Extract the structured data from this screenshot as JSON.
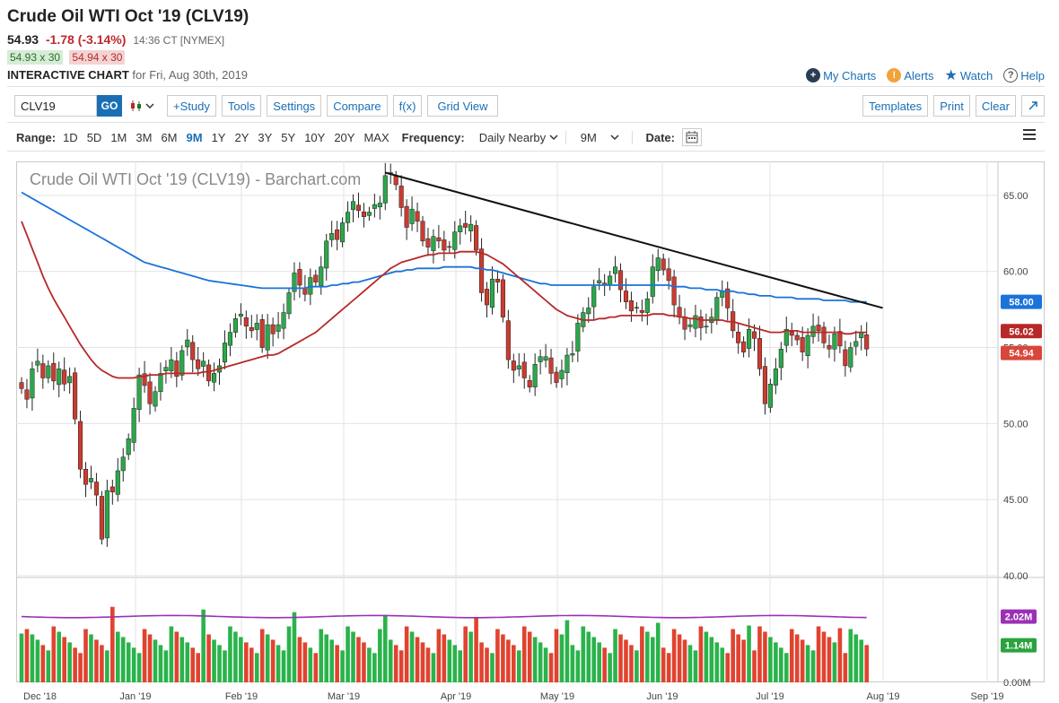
{
  "header": {
    "title": "Crude Oil WTI Oct '19 (CLV19)",
    "last": "54.93",
    "change": "-1.78 (-3.14%)",
    "time": "14:36 CT [NYMEX]",
    "bid": "54.93 x 30",
    "ask": "54.94 x 30",
    "interactive_label": "INTERACTIVE CHART",
    "interactive_date": "for Fri, Aug 30th, 2019"
  },
  "links": {
    "my_charts": "My Charts",
    "alerts": "Alerts",
    "watch": "Watch",
    "help": "Help"
  },
  "toolbar": {
    "symbol_value": "CLV19",
    "go": "GO",
    "study": "+Study",
    "tools": "Tools",
    "settings": "Settings",
    "compare": "Compare",
    "fx": "f(x)",
    "grid_view": "Grid View",
    "templates": "Templates",
    "print": "Print",
    "clear": "Clear"
  },
  "rangebar": {
    "range_label": "Range:",
    "ranges": [
      "1D",
      "5D",
      "1M",
      "3M",
      "6M",
      "9M",
      "1Y",
      "2Y",
      "3Y",
      "5Y",
      "10Y",
      "20Y",
      "MAX"
    ],
    "active_range": "9M",
    "frequency_label": "Frequency:",
    "frequency_value": "Daily Nearby",
    "period_value": "9M",
    "date_label": "Date:"
  },
  "chart_data": {
    "type": "candlestick",
    "watermark": "Crude Oil WTI Oct '19 (CLV19) - Barchart.com",
    "price_axis": {
      "ylim": [
        40,
        67
      ],
      "ticks": [
        "65.00",
        "60.00",
        "55.00",
        "50.00",
        "45.00",
        "40.00"
      ]
    },
    "volume_axis": {
      "ticks": [
        "0.00M"
      ]
    },
    "x_tick_labels": [
      "Dec '18",
      "Jan '19",
      "Feb '19",
      "Mar '19",
      "Apr '19",
      "May '19",
      "Jun '19",
      "Jul '19",
      "Aug '19",
      "Sep '19"
    ],
    "price_badges": [
      {
        "label": "58.00",
        "color": "#1a73d9"
      },
      {
        "label": "56.02",
        "color": "#b82828"
      },
      {
        "label": "54.94",
        "color": "#d9463a"
      }
    ],
    "volume_badges": [
      {
        "label": "2.02M",
        "color": "#9b30b5"
      },
      {
        "label": "1.14M",
        "color": "#2aa33f"
      }
    ],
    "closes": [
      52.3,
      51.6,
      53.6,
      54.1,
      53.0,
      53.8,
      52.8,
      53.6,
      52.6,
      53.1,
      50.3,
      47.0,
      46.0,
      46.4,
      45.3,
      42.4,
      45.6,
      45.5,
      46.9,
      47.8,
      49.0,
      51.0,
      53.2,
      52.5,
      51.3,
      52.1,
      53.3,
      53.7,
      54.2,
      53.1,
      54.8,
      55.5,
      54.2,
      53.6,
      54.1,
      52.8,
      53.3,
      53.8,
      55.3,
      56.0,
      56.9,
      57.2,
      56.4,
      56.1,
      56.6,
      55.0,
      56.5,
      55.9,
      56.5,
      57.3,
      58.6,
      59.9,
      59.1,
      58.5,
      59.6,
      59.3,
      60.3,
      62.0,
      62.5,
      62.1,
      63.2,
      63.9,
      64.6,
      64.0,
      63.6,
      63.9,
      64.4,
      64.5,
      66.3,
      66.5,
      65.7,
      64.2,
      62.9,
      64.1,
      63.3,
      62.0,
      61.6,
      62.3,
      62.0,
      61.4,
      61.6,
      62.6,
      63.0,
      62.9,
      63.1,
      61.4,
      58.6,
      57.8,
      59.5,
      59.3,
      57.0,
      54.2,
      53.5,
      53.8,
      53.0,
      52.4,
      53.9,
      54.4,
      54.4,
      53.3,
      52.7,
      53.5,
      54.5,
      54.6,
      56.6,
      57.3,
      57.6,
      59.0,
      59.4,
      59.1,
      59.7,
      60.3,
      58.8,
      58.0,
      57.4,
      57.6,
      57.3,
      58.2,
      60.3,
      60.9,
      60.1,
      59.4,
      57.8,
      57.0,
      56.2,
      56.5,
      57.1,
      56.3,
      56.4,
      57.0,
      58.3,
      58.7,
      57.6,
      56.1,
      55.3,
      54.7,
      56.2,
      55.6,
      53.6,
      51.3,
      52.6,
      53.6,
      54.9,
      56.2,
      55.8,
      55.5,
      54.7,
      55.8,
      56.4,
      56.1,
      55.3,
      54.9,
      55.9,
      55.1,
      53.8,
      55.0,
      55.4,
      56.0,
      54.9
    ],
    "sma_red": {
      "name": "Moving average 1",
      "color": "#b82828",
      "values": [
        63.3,
        62.4,
        61.5,
        60.6,
        59.7,
        58.9,
        58.2,
        57.6,
        57.0,
        56.4,
        55.8,
        55.2,
        54.7,
        54.2,
        53.8,
        53.5,
        53.3,
        53.1,
        53.0,
        53.0,
        53.0,
        53.0,
        53.1,
        53.1,
        53.2,
        53.2,
        53.2,
        53.3,
        53.3,
        53.3,
        53.3,
        53.3,
        53.3,
        53.3,
        53.4,
        53.4,
        53.5,
        53.6,
        53.7,
        53.8,
        53.9,
        54.0,
        54.1,
        54.2,
        54.3,
        54.4,
        54.5,
        54.5,
        54.6,
        54.8,
        55.0,
        55.2,
        55.4,
        55.6,
        55.8,
        56.0,
        56.3,
        56.6,
        56.9,
        57.2,
        57.5,
        57.8,
        58.1,
        58.4,
        58.7,
        59.0,
        59.3,
        59.6,
        59.9,
        60.2,
        60.4,
        60.6,
        60.7,
        60.8,
        60.9,
        61.0,
        61.1,
        61.1,
        61.2,
        61.2,
        61.2,
        61.2,
        61.3,
        61.3,
        61.3,
        61.3,
        61.2,
        61.1,
        60.9,
        60.7,
        60.5,
        60.2,
        59.9,
        59.6,
        59.3,
        59.0,
        58.7,
        58.4,
        58.1,
        57.8,
        57.5,
        57.3,
        57.1,
        57.0,
        56.9,
        56.8,
        56.8,
        56.8,
        56.9,
        56.9,
        57.0,
        57.0,
        57.1,
        57.1,
        57.1,
        57.1,
        57.1,
        57.1,
        57.2,
        57.2,
        57.2,
        57.1,
        57.1,
        57.0,
        57.0,
        56.9,
        56.9,
        56.8,
        56.8,
        56.8,
        56.8,
        56.8,
        56.7,
        56.7,
        56.6,
        56.5,
        56.4,
        56.3,
        56.2,
        56.1,
        56.0,
        56.0,
        56.0,
        56.1,
        56.1,
        56.1,
        56.0,
        56.0,
        56.0,
        56.0,
        56.0,
        56.0,
        56.0,
        56.0,
        55.9,
        55.9,
        56.0,
        56.0,
        56.0
      ]
    },
    "sma_blue": {
      "name": "Moving average 2",
      "color": "#1a73d9",
      "values": [
        65.2,
        65.0,
        64.8,
        64.6,
        64.4,
        64.2,
        64.0,
        63.8,
        63.6,
        63.4,
        63.2,
        63.0,
        62.8,
        62.6,
        62.4,
        62.2,
        62.0,
        61.8,
        61.6,
        61.4,
        61.2,
        61.0,
        60.8,
        60.6,
        60.5,
        60.4,
        60.3,
        60.2,
        60.1,
        60.0,
        59.9,
        59.8,
        59.7,
        59.6,
        59.5,
        59.4,
        59.35,
        59.3,
        59.25,
        59.2,
        59.15,
        59.1,
        59.05,
        59.0,
        58.95,
        58.9,
        58.9,
        58.9,
        58.9,
        58.9,
        58.9,
        58.9,
        58.9,
        58.9,
        59.0,
        59.0,
        59.0,
        59.0,
        59.1,
        59.1,
        59.2,
        59.2,
        59.3,
        59.3,
        59.4,
        59.5,
        59.6,
        59.7,
        59.8,
        59.9,
        60.0,
        60.0,
        60.1,
        60.1,
        60.2,
        60.2,
        60.2,
        60.2,
        60.2,
        60.3,
        60.3,
        60.3,
        60.3,
        60.3,
        60.3,
        60.2,
        60.2,
        60.1,
        60.1,
        60.0,
        59.9,
        59.8,
        59.7,
        59.6,
        59.5,
        59.4,
        59.3,
        59.2,
        59.2,
        59.1,
        59.1,
        59.1,
        59.1,
        59.1,
        59.1,
        59.1,
        59.1,
        59.1,
        59.1,
        59.1,
        59.1,
        59.1,
        59.1,
        59.1,
        59.1,
        59.1,
        59.1,
        59.1,
        59.1,
        59.1,
        59.1,
        59.1,
        59.0,
        59.0,
        59.0,
        58.9,
        58.9,
        58.9,
        58.8,
        58.8,
        58.8,
        58.7,
        58.7,
        58.7,
        58.6,
        58.6,
        58.5,
        58.5,
        58.4,
        58.4,
        58.4,
        58.3,
        58.3,
        58.3,
        58.3,
        58.2,
        58.2,
        58.2,
        58.2,
        58.2,
        58.1,
        58.1,
        58.1,
        58.1,
        58.1,
        58.0,
        58.0,
        58.0,
        58.0
      ]
    },
    "trendline": {
      "from": {
        "index": 68,
        "price": 66.5
      },
      "to": {
        "index": 161,
        "price": 57.6
      }
    },
    "volume_avg": {
      "name": "Volume average",
      "color": "#9b30b5",
      "value_m": 2.02
    },
    "last_volume_m": 1.14
  }
}
